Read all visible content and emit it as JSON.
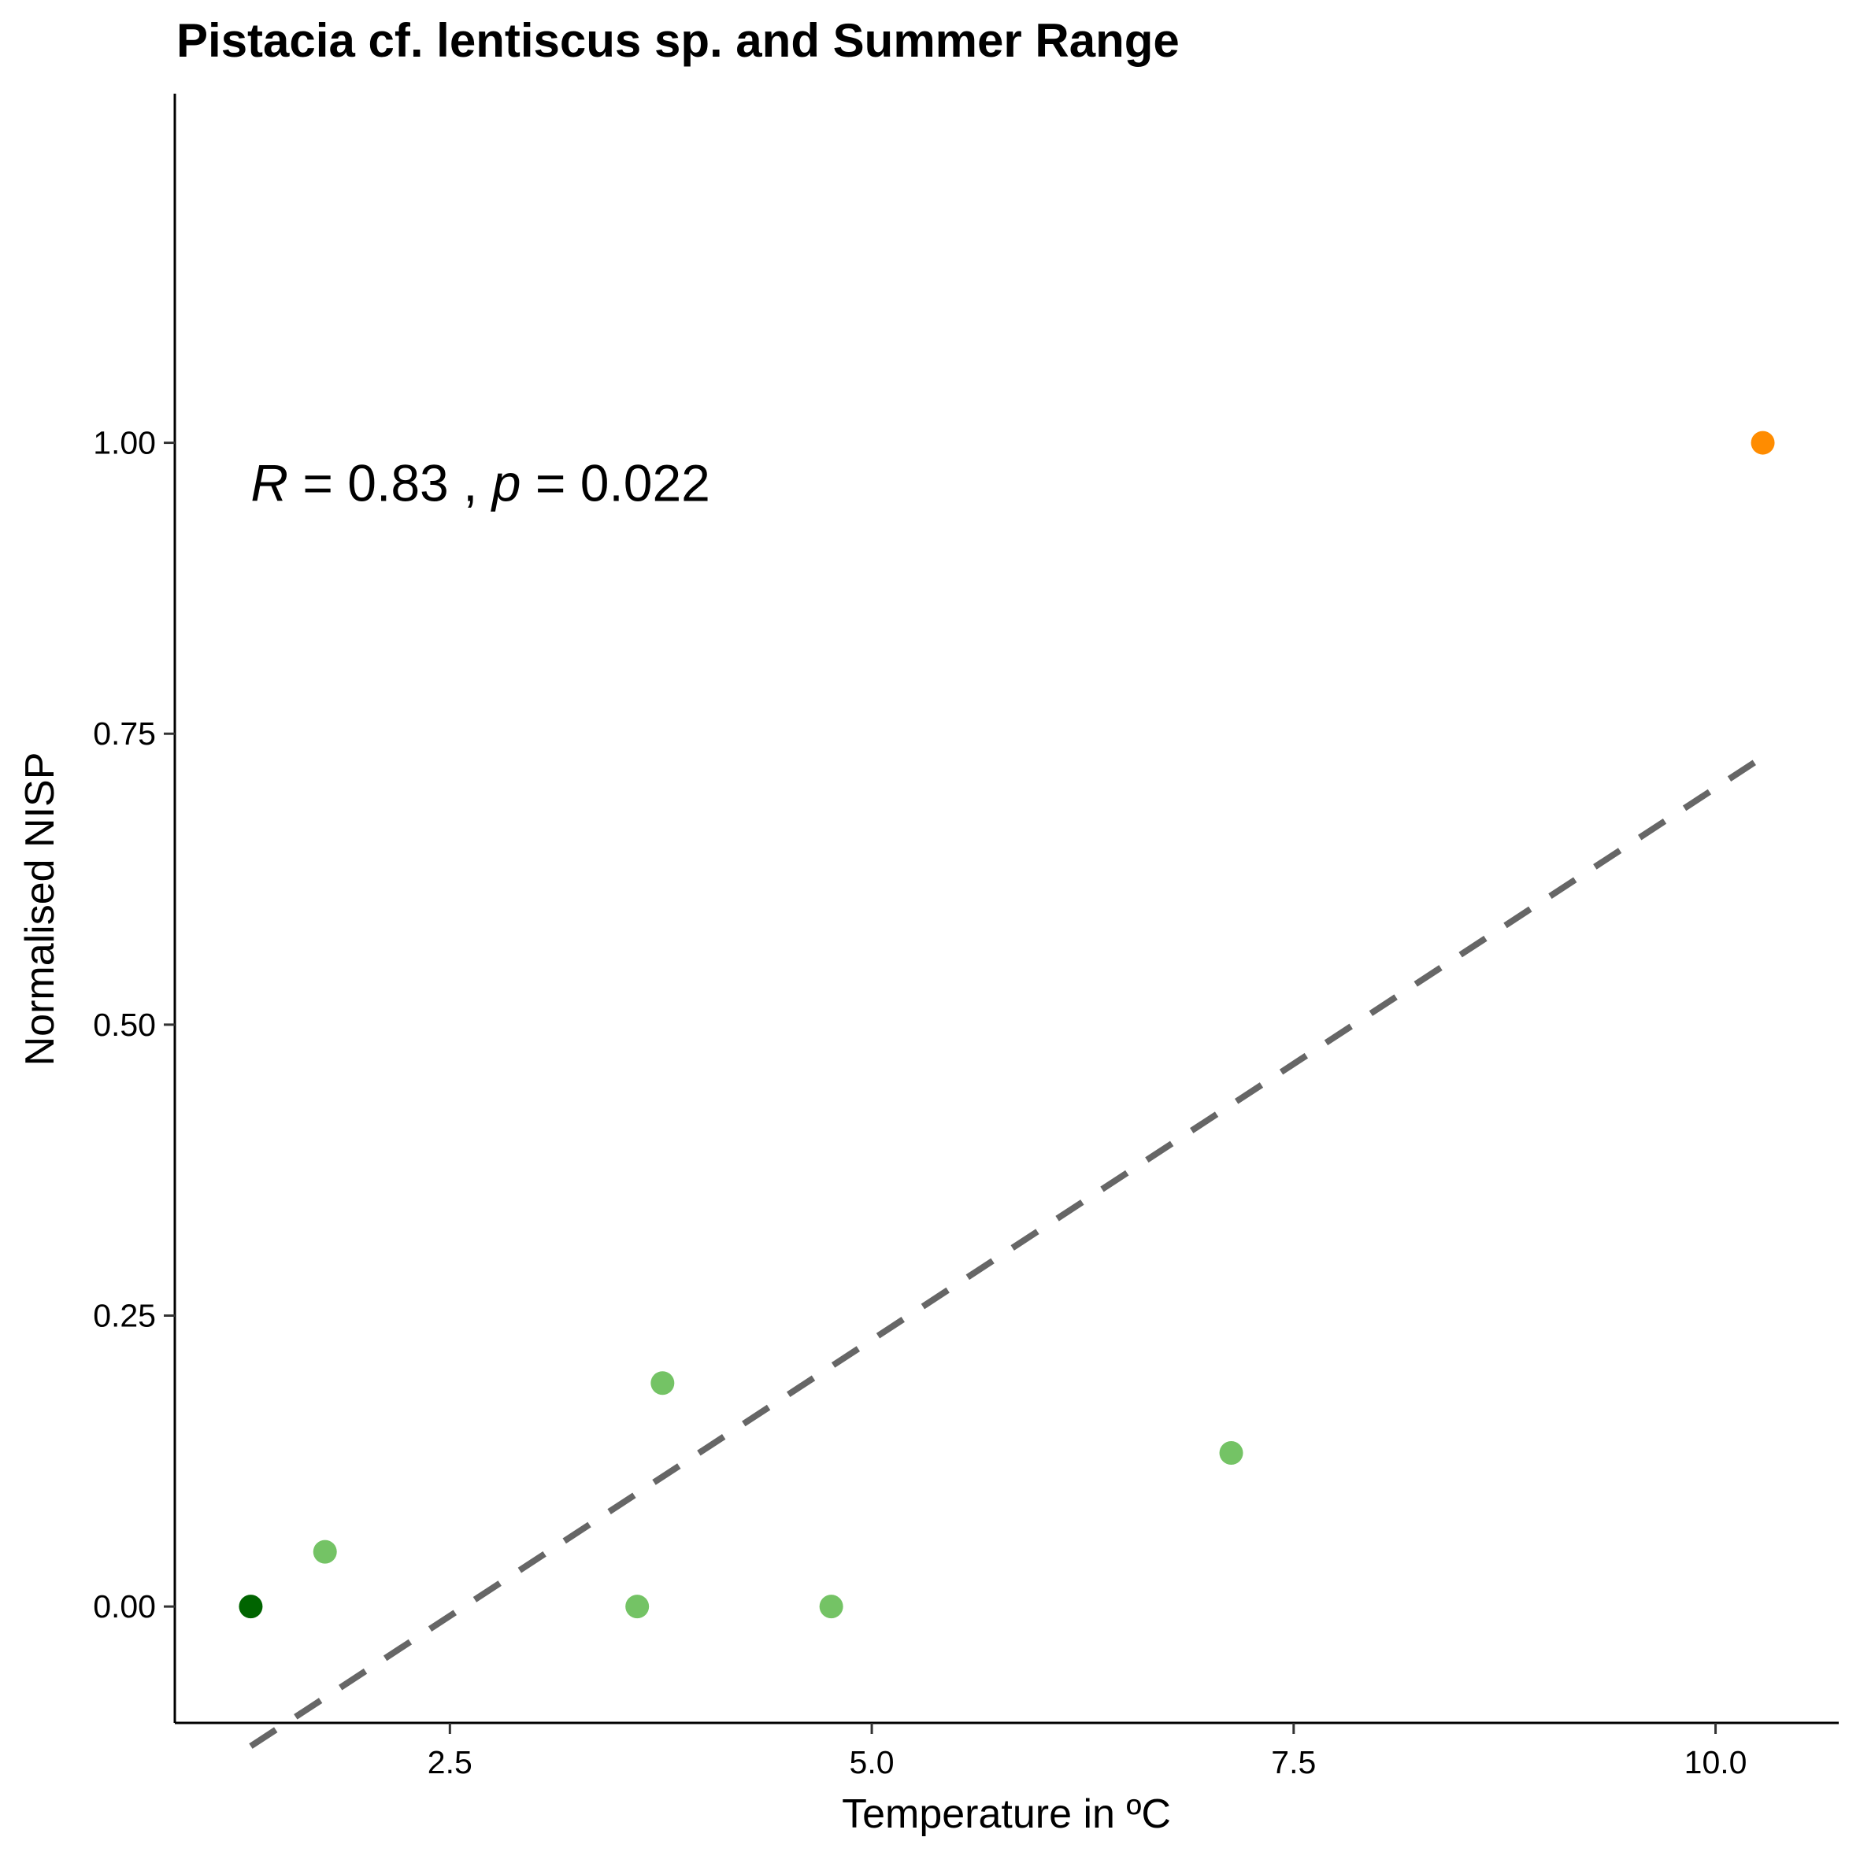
{
  "chart_data": {
    "type": "scatter",
    "title": "Pistacia cf. lentiscus sp. and Summer Range",
    "xlabel": "Temperature in ºC",
    "ylabel": "Normalised NISP",
    "xlim": [
      0.87,
      10.73
    ],
    "ylim": [
      -0.1,
      1.3
    ],
    "x_ticks": [
      2.5,
      5.0,
      7.5,
      10.0
    ],
    "x_tick_labels": [
      "2.5",
      "5.0",
      "7.5",
      "10.0"
    ],
    "y_ticks": [
      0.0,
      0.25,
      0.5,
      0.75,
      1.0
    ],
    "y_tick_labels": [
      "0.00",
      "0.25",
      "0.50",
      "0.75",
      "1.00"
    ],
    "grid": false,
    "points": [
      {
        "x": 1.32,
        "y": 0.0,
        "color": "#006400"
      },
      {
        "x": 1.76,
        "y": 0.047,
        "color": "#74c365"
      },
      {
        "x": 3.61,
        "y": 0.0,
        "color": "#74c365"
      },
      {
        "x": 3.76,
        "y": 0.192,
        "color": "#74c365"
      },
      {
        "x": 4.76,
        "y": 0.0,
        "color": "#74c365"
      },
      {
        "x": 7.13,
        "y": 0.132,
        "color": "#74c365"
      },
      {
        "x": 10.28,
        "y": 1.0,
        "color": "#ff8c00"
      }
    ],
    "trendline": {
      "style": "dashed",
      "color": "#666666",
      "x": [
        1.32,
        10.28
      ],
      "y": [
        -0.12,
        0.73
      ]
    },
    "annotation": {
      "r_symbol": "R",
      "r_eq": " = 0.83 , ",
      "p_symbol": "p",
      "p_eq": " = 0.022",
      "x": 1.32,
      "y": 0.965
    }
  }
}
